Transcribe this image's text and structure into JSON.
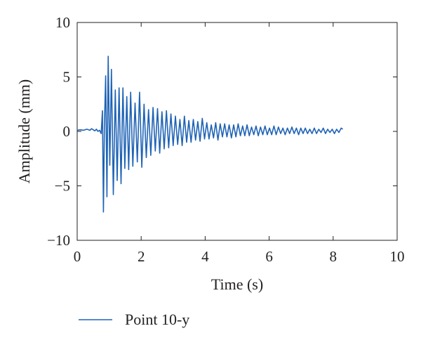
{
  "chart_data": {
    "type": "line",
    "title": "",
    "xlabel": "Time (s)",
    "ylabel": "Amplitude (mm)",
    "xlim": [
      0,
      10
    ],
    "ylim": [
      -10,
      10
    ],
    "xticks": [
      0,
      2,
      4,
      6,
      8,
      10
    ],
    "yticks": [
      -10,
      -5,
      0,
      5,
      10
    ],
    "xtick_labels": [
      "0",
      "2",
      "4",
      "6",
      "8",
      "10"
    ],
    "ytick_labels": [
      "−10",
      "−5",
      "0",
      "5",
      "10"
    ],
    "grid": false,
    "legend_position": "bottom-left",
    "series_color": "#1f63b5",
    "series": [
      {
        "name": "Point 10-y",
        "x": [
          0,
          0.1,
          0.2,
          0.3,
          0.4,
          0.45,
          0.5,
          0.55,
          0.6,
          0.65,
          0.7,
          0.75,
          0.79,
          0.82,
          0.85,
          0.89,
          0.93,
          0.97,
          1.02,
          1.07,
          1.13,
          1.19,
          1.25,
          1.31,
          1.37,
          1.43,
          1.49,
          1.55,
          1.61,
          1.67,
          1.74,
          1.81,
          1.88,
          1.95,
          2.02,
          2.09,
          2.16,
          2.23,
          2.3,
          2.37,
          2.44,
          2.51,
          2.58,
          2.65,
          2.72,
          2.79,
          2.86,
          2.93,
          3.0,
          3.07,
          3.14,
          3.21,
          3.28,
          3.35,
          3.42,
          3.49,
          3.56,
          3.63,
          3.7,
          3.77,
          3.84,
          3.91,
          3.98,
          4.05,
          4.12,
          4.19,
          4.26,
          4.33,
          4.4,
          4.47,
          4.54,
          4.61,
          4.68,
          4.75,
          4.82,
          4.89,
          4.96,
          5.03,
          5.1,
          5.17,
          5.24,
          5.31,
          5.38,
          5.45,
          5.52,
          5.59,
          5.66,
          5.73,
          5.8,
          5.87,
          5.94,
          6.01,
          6.08,
          6.15,
          6.22,
          6.29,
          6.36,
          6.43,
          6.5,
          6.57,
          6.64,
          6.71,
          6.78,
          6.85,
          6.92,
          6.99,
          7.06,
          7.13,
          7.2,
          7.27,
          7.34,
          7.41,
          7.48,
          7.55,
          7.62,
          7.69,
          7.76,
          7.83,
          7.9,
          7.97,
          8.04,
          8.11,
          8.18,
          8.25,
          8.3
        ],
        "y": [
          0.1,
          0.15,
          0.1,
          0.2,
          0.1,
          0.25,
          0.15,
          0.05,
          0.2,
          0.0,
          0.1,
          -0.2,
          1.9,
          -7.4,
          0.5,
          5.1,
          -6.0,
          6.9,
          -3.1,
          5.7,
          -5.8,
          3.8,
          -4.5,
          4.0,
          -4.8,
          4.0,
          -3.4,
          3.2,
          -3.5,
          3.6,
          -3.2,
          2.6,
          -2.8,
          3.6,
          -3.3,
          2.5,
          -2.4,
          2.0,
          -2.2,
          2.2,
          -1.8,
          2.1,
          -2.0,
          1.8,
          -1.6,
          1.9,
          -1.5,
          1.6,
          -1.3,
          1.4,
          -1.2,
          1.1,
          -1.3,
          1.4,
          -1.0,
          1.0,
          -1.0,
          1.1,
          -0.8,
          0.9,
          -0.9,
          1.2,
          -0.7,
          0.8,
          -0.7,
          0.6,
          -0.6,
          0.8,
          -0.8,
          0.7,
          -0.5,
          0.7,
          -0.5,
          0.6,
          -0.6,
          0.6,
          -0.5,
          0.7,
          -0.4,
          0.5,
          -0.4,
          0.6,
          -0.4,
          0.4,
          -0.3,
          0.5,
          -0.4,
          0.4,
          -0.3,
          0.5,
          -0.3,
          0.3,
          -0.3,
          0.5,
          -0.3,
          0.4,
          -0.2,
          0.3,
          -0.3,
          0.3,
          -0.2,
          0.4,
          -0.2,
          0.3,
          -0.3,
          0.3,
          -0.2,
          0.3,
          -0.2,
          0.2,
          -0.2,
          0.3,
          -0.2,
          0.2,
          -0.1,
          0.3,
          -0.2,
          0.2,
          -0.1,
          0.2,
          -0.2,
          0.2,
          -0.1,
          0.3,
          0.2
        ]
      }
    ]
  }
}
